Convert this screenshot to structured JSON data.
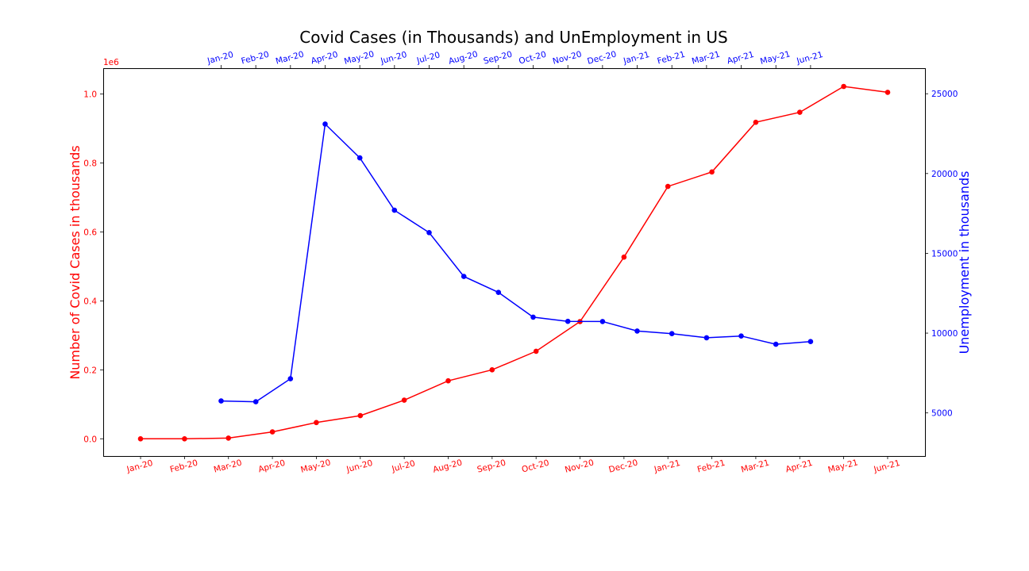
{
  "chart_data": {
    "type": "line",
    "title": "Covid Cases (in Thousands) and UnEmployment in US",
    "colors": {
      "covid": "#ff0000",
      "unemployment": "#0000ff"
    },
    "grid": false,
    "left_axis": {
      "label": "Number of Covid Cases in thousands",
      "color": "#ff0000",
      "offset_text": "1e6",
      "ylim": [
        -0.05,
        1.075
      ],
      "ticks": [
        0.0,
        0.2,
        0.4,
        0.6,
        0.8,
        1.0
      ],
      "tick_labels": [
        "0.0",
        "0.2",
        "0.4",
        "0.6",
        "0.8",
        "1.0"
      ]
    },
    "right_axis": {
      "label": "Unemployment in thousands",
      "color": "#0000ff",
      "ylim": [
        2300,
        26600
      ],
      "ticks": [
        5000,
        10000,
        15000,
        20000,
        25000
      ],
      "tick_labels": [
        "5000",
        "10000",
        "15000",
        "20000",
        "25000"
      ]
    },
    "bottom_axis": {
      "color": "#ff0000",
      "categories": [
        "Jan-20",
        "Feb-20",
        "Mar-20",
        "Apr-20",
        "May-20",
        "Jun-20",
        "Jul-20",
        "Aug-20",
        "Sep-20",
        "Oct-20",
        "Nov-20",
        "Dec-20",
        "Jan-21",
        "Feb-21",
        "Mar-21",
        "Apr-21",
        "May-21",
        "Jun-21"
      ],
      "xlim": [
        -0.85,
        17.85
      ]
    },
    "top_axis": {
      "color": "#0000ff",
      "categories": [
        "Jan-20",
        "Feb-20",
        "Mar-20",
        "Apr-20",
        "May-20",
        "Jun-20",
        "Jul-20",
        "Aug-20",
        "Sep-20",
        "Oct-20",
        "Nov-20",
        "Dec-20",
        "Jan-21",
        "Feb-21",
        "Mar-21",
        "Apr-21",
        "May-21",
        "Jun-21"
      ],
      "xlim": [
        -3.4,
        20.3
      ]
    },
    "series": [
      {
        "axis": "left",
        "values": [
          0.0,
          0.0,
          0.002,
          0.02,
          0.047,
          0.067,
          0.112,
          0.168,
          0.2,
          0.254,
          0.34,
          0.527,
          0.732,
          0.774,
          0.918,
          0.947,
          1.022,
          1.005
        ]
      },
      {
        "axis": "right",
        "values": [
          5750,
          5700,
          7140,
          23100,
          20980,
          17700,
          16300,
          13550,
          12550,
          11000,
          10740,
          10730,
          10130,
          9970,
          9710,
          9820,
          9300,
          9470
        ]
      }
    ]
  }
}
